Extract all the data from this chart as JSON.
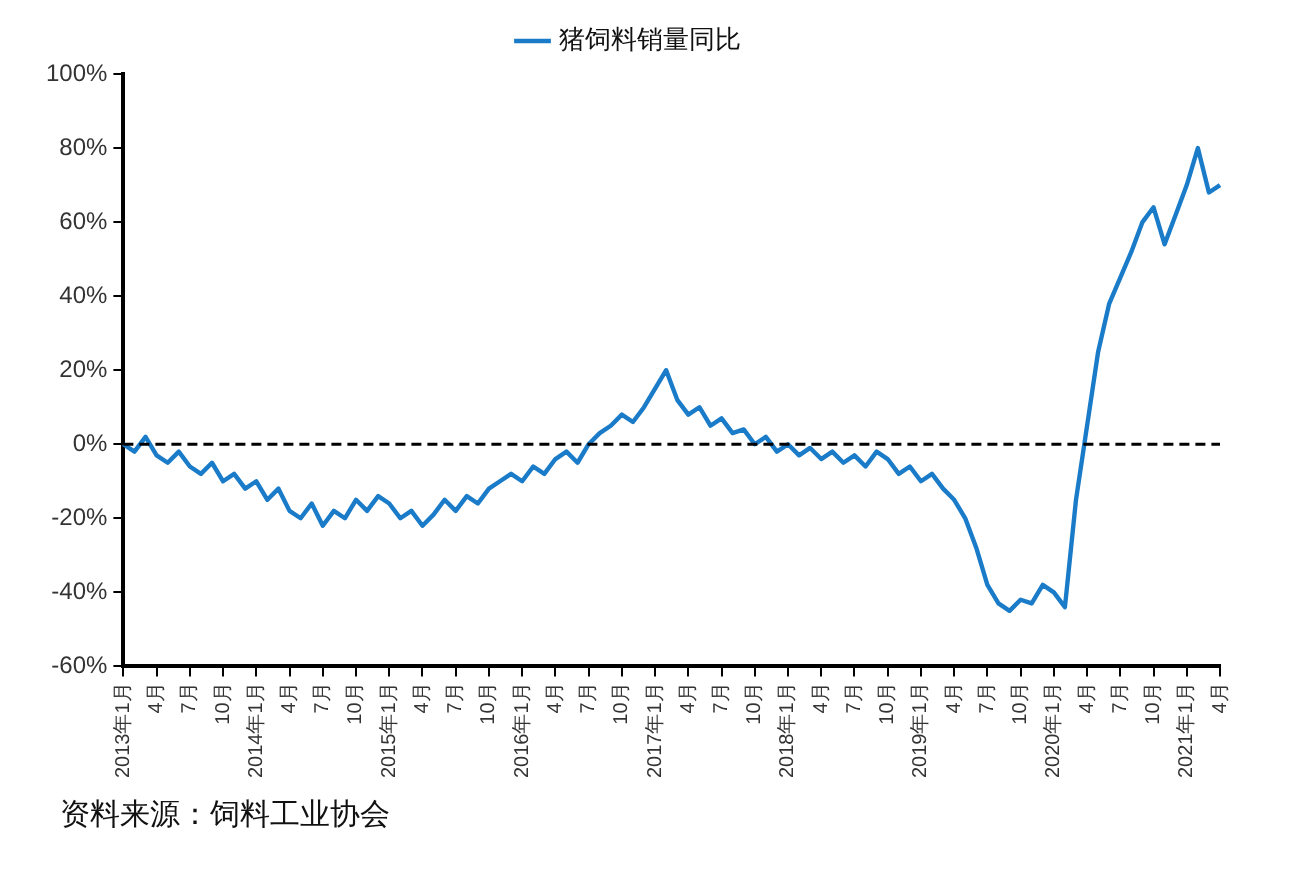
{
  "chart_data": {
    "type": "line",
    "categories": [
      "2013年1月",
      null,
      null,
      "4月",
      null,
      null,
      "7月",
      null,
      null,
      "10月",
      null,
      null,
      "2014年1月",
      null,
      null,
      "4月",
      null,
      null,
      "7月",
      null,
      null,
      "10月",
      null,
      null,
      "2015年1月",
      null,
      null,
      "4月",
      null,
      null,
      "7月",
      null,
      null,
      "10月",
      null,
      null,
      "2016年1月",
      null,
      null,
      "4月",
      null,
      null,
      "7月",
      null,
      null,
      "10月",
      null,
      null,
      "2017年1月",
      null,
      null,
      "4月",
      null,
      null,
      "7月",
      null,
      null,
      "10月",
      null,
      null,
      "2018年1月",
      null,
      null,
      "4月",
      null,
      null,
      "7月",
      null,
      null,
      "10月",
      null,
      null,
      "2019年1月",
      null,
      null,
      "4月",
      null,
      null,
      "7月",
      null,
      null,
      "10月",
      null,
      null,
      "2020年1月",
      null,
      null,
      "4月",
      null,
      null,
      "7月",
      null,
      null,
      "10月",
      null,
      null,
      "2021年1月",
      null,
      null,
      "4月"
    ],
    "series": [
      {
        "name": "猪饲料销量同比",
        "color": "#1a7bc9",
        "values": [
          0,
          -2,
          2,
          -3,
          -5,
          -2,
          -6,
          -8,
          -5,
          -10,
          -8,
          -12,
          -10,
          -15,
          -12,
          -18,
          -20,
          -16,
          -22,
          -18,
          -20,
          -15,
          -18,
          -14,
          -16,
          -20,
          -18,
          -22,
          -19,
          -15,
          -18,
          -14,
          -16,
          -12,
          -10,
          -8,
          -10,
          -6,
          -8,
          -4,
          -2,
          -5,
          0,
          3,
          5,
          8,
          6,
          10,
          15,
          20,
          12,
          8,
          10,
          5,
          7,
          3,
          4,
          0,
          2,
          -2,
          0,
          -3,
          -1,
          -4,
          -2,
          -5,
          -3,
          -6,
          -2,
          -4,
          -8,
          -6,
          -10,
          -8,
          -12,
          -15,
          -20,
          -28,
          -38,
          -43,
          -45,
          -42,
          -43,
          -38,
          -40,
          -44,
          -15,
          5,
          25,
          38,
          45,
          52,
          60,
          64,
          54,
          62,
          70,
          80,
          68,
          70
        ]
      }
    ],
    "ylim": [
      -60,
      100
    ],
    "yticks": [
      {
        "value": -60,
        "label": "-60%"
      },
      {
        "value": -40,
        "label": "-40%"
      },
      {
        "value": -20,
        "label": "-20%"
      },
      {
        "value": 0,
        "label": "0%"
      },
      {
        "value": 20,
        "label": "20%"
      },
      {
        "value": 40,
        "label": "40%"
      },
      {
        "value": 60,
        "label": "60%"
      },
      {
        "value": 80,
        "label": "80%"
      },
      {
        "value": 100,
        "label": "100%"
      }
    ],
    "ref_lines": [
      {
        "axis": "y",
        "value": 0,
        "color": "#000000",
        "line_style": "dashed"
      }
    ],
    "grid": false,
    "legend": "top",
    "marker": "none",
    "line_style": "solid",
    "annotations": [
      "资料来源：饲料工业协会"
    ]
  }
}
